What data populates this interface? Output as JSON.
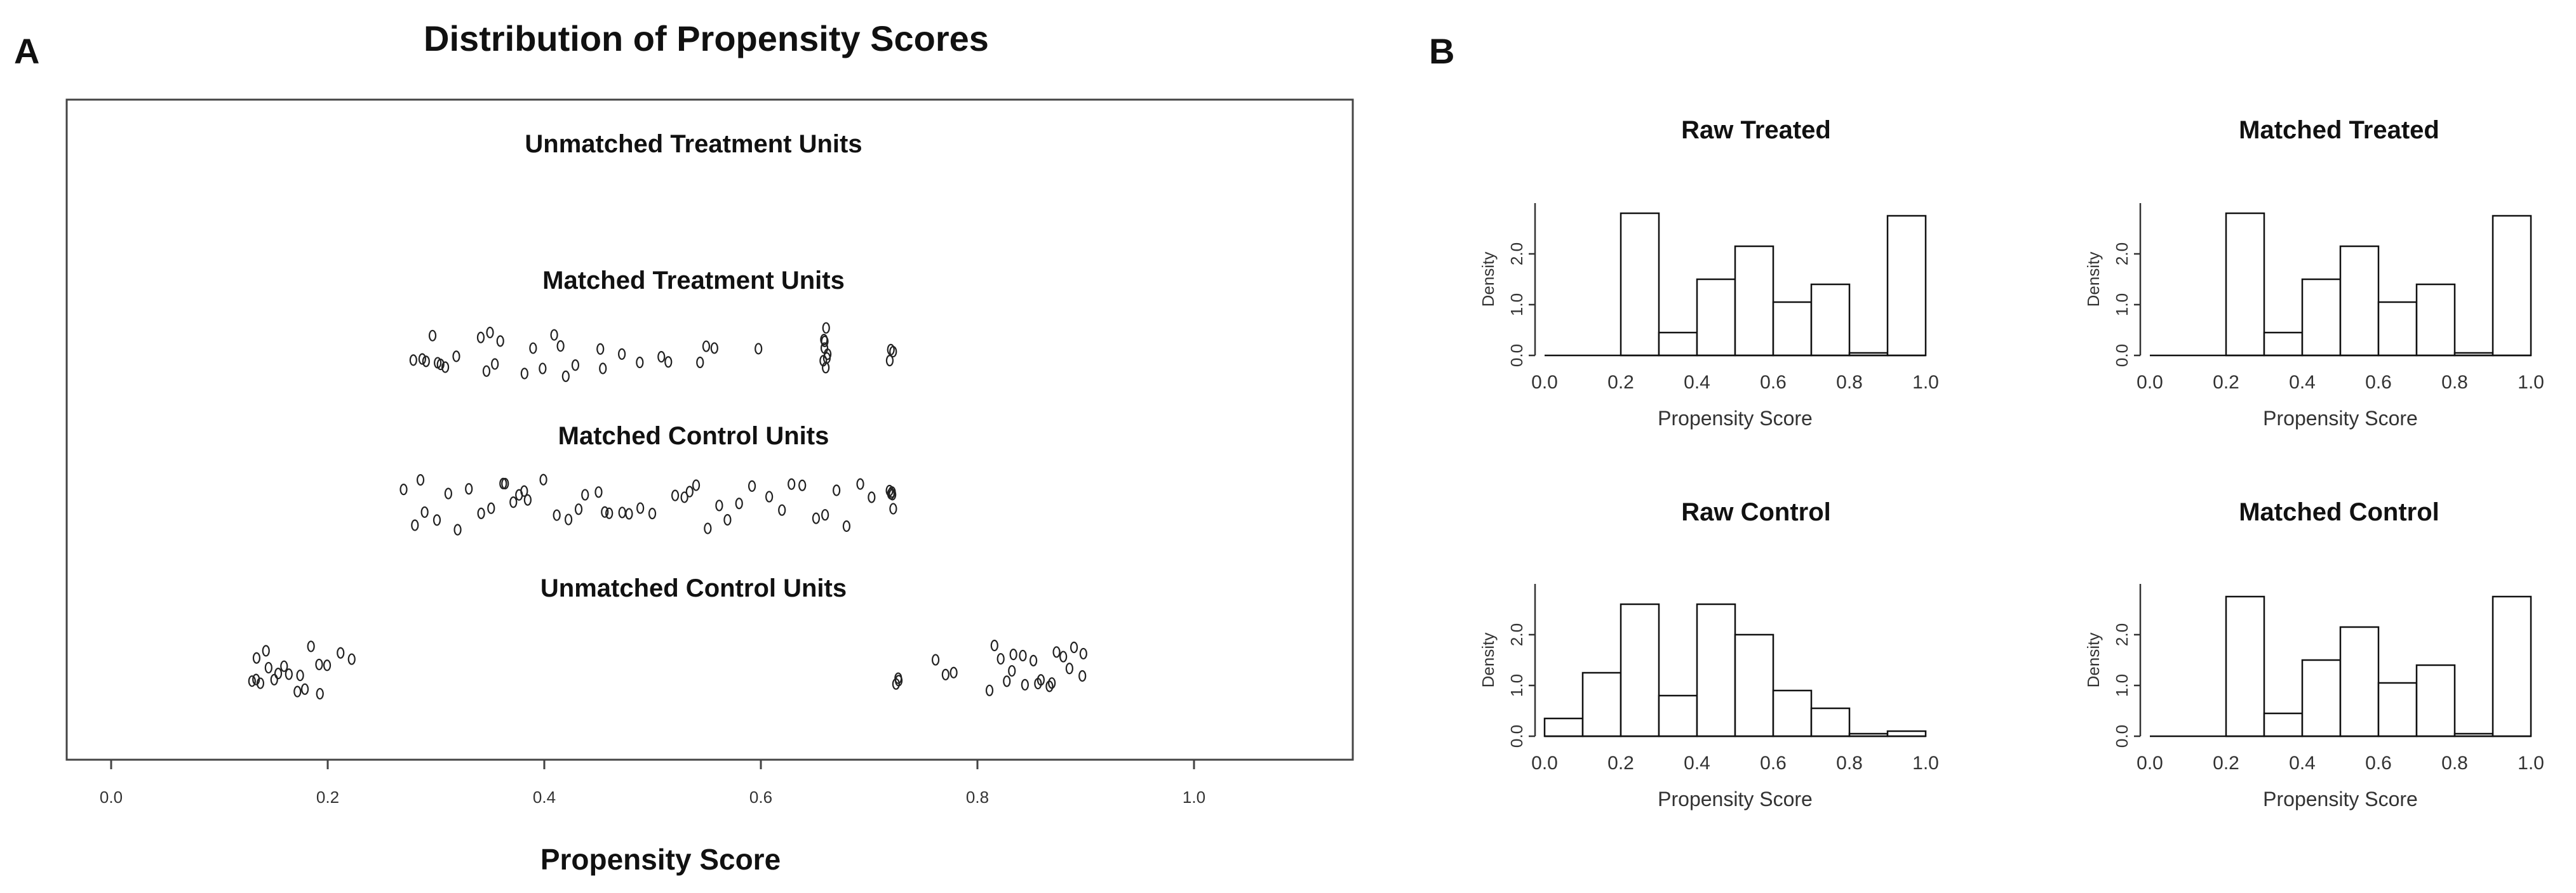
{
  "panel_a": {
    "letter": "A",
    "title": "Distribution of Propensity Scores",
    "xlabel": "Propensity Score",
    "groups": [
      {
        "label": "Unmatched Treatment Units"
      },
      {
        "label": "Matched Treatment Units"
      },
      {
        "label": "Matched Control Units"
      },
      {
        "label": "Unmatched Control Units"
      }
    ],
    "xticks": [
      "0.0",
      "0.2",
      "0.4",
      "0.6",
      "0.8",
      "1.0"
    ]
  },
  "panel_b": {
    "letter": "B",
    "xticks": [
      "0.0",
      "0.2",
      "0.4",
      "0.6",
      "0.8",
      "1.0"
    ],
    "yticks": [
      "0.0",
      "1.0",
      "2.0"
    ]
  },
  "chart_data": [
    {
      "type": "scatter",
      "title": "Distribution of Propensity Scores",
      "xlabel": "Propensity Score",
      "ylabel": "",
      "xlim": [
        -0.05,
        1.15
      ],
      "series": [
        {
          "name": "Unmatched Treatment Units",
          "x": []
        },
        {
          "name": "Matched Treatment Units",
          "x": [
            0.28,
            0.285,
            0.29,
            0.295,
            0.3,
            0.305,
            0.31,
            0.32,
            0.34,
            0.345,
            0.35,
            0.355,
            0.36,
            0.38,
            0.39,
            0.4,
            0.41,
            0.415,
            0.42,
            0.43,
            0.45,
            0.455,
            0.47,
            0.49,
            0.51,
            0.515,
            0.545,
            0.55,
            0.555,
            0.6,
            0.66,
            0.66,
            0.66,
            0.66,
            0.66,
            0.66,
            0.66,
            0.66,
            0.72,
            0.72,
            0.72
          ]
        },
        {
          "name": "Matched Control Units",
          "x": [
            0.27,
            0.28,
            0.285,
            0.29,
            0.3,
            0.31,
            0.32,
            0.33,
            0.34,
            0.35,
            0.36,
            0.365,
            0.37,
            0.375,
            0.38,
            0.385,
            0.4,
            0.41,
            0.42,
            0.43,
            0.44,
            0.45,
            0.455,
            0.46,
            0.47,
            0.48,
            0.49,
            0.5,
            0.52,
            0.53,
            0.535,
            0.54,
            0.55,
            0.56,
            0.57,
            0.58,
            0.59,
            0.61,
            0.62,
            0.63,
            0.64,
            0.65,
            0.66,
            0.67,
            0.68,
            0.69,
            0.7,
            0.72,
            0.72,
            0.72,
            0.72,
            0.72
          ]
        },
        {
          "name": "Unmatched Control Units",
          "x": [
            0.13,
            0.133,
            0.136,
            0.14,
            0.143,
            0.146,
            0.15,
            0.155,
            0.16,
            0.165,
            0.17,
            0.175,
            0.18,
            0.185,
            0.19,
            0.195,
            0.2,
            0.21,
            0.22,
            0.725,
            0.725,
            0.725,
            0.76,
            0.77,
            0.78,
            0.81,
            0.815,
            0.82,
            0.825,
            0.83,
            0.835,
            0.84,
            0.845,
            0.85,
            0.855,
            0.86,
            0.865,
            0.87,
            0.875,
            0.88,
            0.885,
            0.89,
            0.895,
            0.9
          ]
        }
      ]
    },
    {
      "type": "bar",
      "title": "Raw Treated",
      "xlabel": "Propensity Score",
      "ylabel": "Density",
      "bin_edges": [
        0.0,
        0.1,
        0.2,
        0.3,
        0.4,
        0.5,
        0.6,
        0.7,
        0.8,
        0.9,
        1.0
      ],
      "values": [
        0.0,
        0.0,
        2.8,
        0.45,
        1.5,
        2.15,
        1.05,
        1.4,
        0.05,
        2.75
      ],
      "ylim": [
        0,
        3.0
      ]
    },
    {
      "type": "bar",
      "title": "Matched Treated",
      "xlabel": "Propensity Score",
      "ylabel": "Density",
      "bin_edges": [
        0.0,
        0.1,
        0.2,
        0.3,
        0.4,
        0.5,
        0.6,
        0.7,
        0.8,
        0.9,
        1.0
      ],
      "values": [
        0.0,
        0.0,
        2.8,
        0.45,
        1.5,
        2.15,
        1.05,
        1.4,
        0.05,
        2.75
      ],
      "ylim": [
        0,
        3.0
      ]
    },
    {
      "type": "bar",
      "title": "Raw Control",
      "xlabel": "Propensity Score",
      "ylabel": "Density",
      "bin_edges": [
        0.0,
        0.1,
        0.2,
        0.3,
        0.4,
        0.5,
        0.6,
        0.7,
        0.8,
        0.9,
        1.0
      ],
      "values": [
        0.35,
        1.25,
        2.6,
        0.8,
        2.6,
        2.0,
        0.9,
        0.55,
        0.05,
        0.1
      ],
      "ylim": [
        0,
        3.0
      ]
    },
    {
      "type": "bar",
      "title": "Matched Control",
      "xlabel": "Propensity Score",
      "ylabel": "Density",
      "bin_edges": [
        0.0,
        0.1,
        0.2,
        0.3,
        0.4,
        0.5,
        0.6,
        0.7,
        0.8,
        0.9,
        1.0
      ],
      "values": [
        0.0,
        0.0,
        2.75,
        0.45,
        1.5,
        2.15,
        1.05,
        1.4,
        0.05,
        2.75
      ],
      "ylim": [
        0,
        3.0
      ]
    }
  ]
}
